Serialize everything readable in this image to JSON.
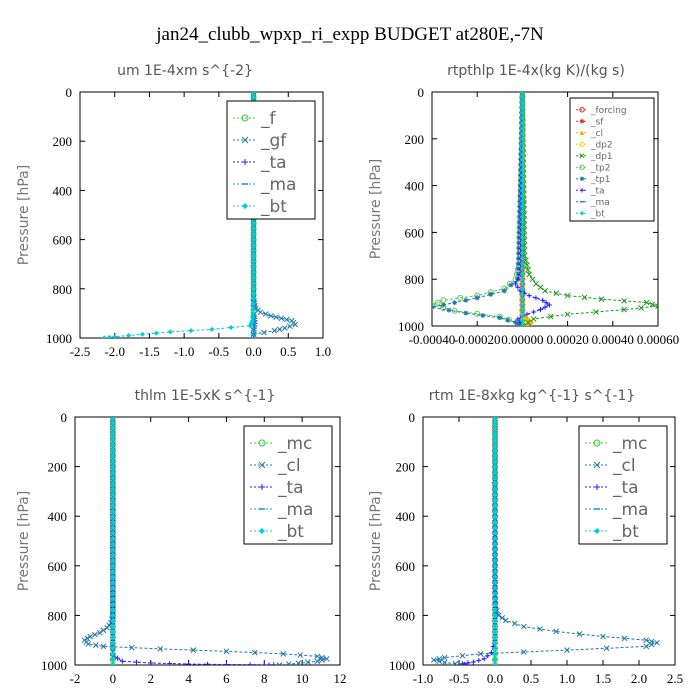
{
  "figure": {
    "title": "jan24_clubb_wpxp_ri_expp  BUDGET at280E,-7N"
  },
  "chart_data": [
    {
      "type": "line",
      "title": "um   1E-4xm s^{-2}",
      "ylabel": "Pressure [hPa]",
      "xlim": [
        -2.5,
        1.0
      ],
      "ylim": [
        1000,
        0
      ],
      "xticks": [
        "-2.5",
        "-2.0",
        "-1.5",
        "-1.0",
        "-0.5",
        "0.0",
        "0.5",
        "1.0"
      ],
      "yticks": [
        "0",
        "200",
        "400",
        "600",
        "800",
        "1000"
      ],
      "legend": {
        "position": "top-right",
        "size": "large"
      },
      "series": [
        {
          "name": "_f",
          "color": "#33cc33",
          "marker": "o",
          "x": [
            0,
            0
          ],
          "y": [
            0,
            1000
          ]
        },
        {
          "name": "_gf",
          "color": "#2277aa",
          "marker": "x",
          "x": [
            0,
            0,
            0,
            0.01,
            0.03,
            0.1,
            0.25,
            0.4,
            0.55,
            0.6,
            0.45,
            0.3,
            0.0
          ],
          "y": [
            0,
            800,
            840,
            860,
            880,
            895,
            910,
            920,
            930,
            945,
            960,
            970,
            985
          ]
        },
        {
          "name": "_ta",
          "color": "#2222ff",
          "marker": "+",
          "x": [
            0,
            0,
            0,
            0,
            0,
            0.02,
            0.02,
            0.01,
            0,
            0
          ],
          "y": [
            0,
            800,
            850,
            870,
            900,
            920,
            940,
            960,
            980,
            1000
          ]
        },
        {
          "name": "_ma",
          "color": "#1199cc",
          "marker": "-",
          "x": [
            0,
            0,
            0,
            0,
            0,
            0,
            0,
            0,
            0,
            0
          ],
          "y": [
            0,
            800,
            850,
            870,
            900,
            920,
            940,
            960,
            980,
            1000
          ]
        },
        {
          "name": "_bt",
          "color": "#00ccdd",
          "marker": "D",
          "x": [
            0,
            0,
            0,
            -0.01,
            -0.02,
            -0.05,
            -0.6,
            -1.2,
            -1.6,
            -2.0,
            -2.15
          ],
          "y": [
            0,
            800,
            860,
            900,
            930,
            950,
            965,
            975,
            985,
            995,
            1000
          ]
        }
      ]
    },
    {
      "type": "line",
      "title": "rtpthlp   1E-4x(kg K)/(kg s)",
      "ylabel": "Pressure [hPa]",
      "xlim": [
        -0.0004,
        0.0006
      ],
      "ylim": [
        1000,
        0
      ],
      "xticks": [
        "-0.00040",
        "-0.00020",
        "0.00000",
        "0.00020",
        "0.00040",
        "0.00060"
      ],
      "yticks": [
        "0",
        "200",
        "400",
        "600",
        "800",
        "1000"
      ],
      "legend": {
        "position": "top-right",
        "size": "small"
      },
      "series": [
        {
          "name": "_forcing",
          "color": "#ee2222",
          "marker": "o",
          "x": [
            0,
            0
          ],
          "y": [
            0,
            1000
          ]
        },
        {
          "name": "_sf",
          "color": "#ee2222",
          "marker": "*",
          "x": [
            0,
            0
          ],
          "y": [
            0,
            1000
          ]
        },
        {
          "name": "_cl",
          "color": "#ffaa00",
          "marker": "^",
          "x": [
            0,
            0,
            2e-05,
            4e-05,
            2e-05,
            0
          ],
          "y": [
            0,
            950,
            965,
            980,
            990,
            1000
          ]
        },
        {
          "name": "_dp2",
          "color": "#dddd00",
          "marker": "o",
          "x": [
            0,
            0,
            1e-05,
            0
          ],
          "y": [
            0,
            960,
            980,
            1000
          ]
        },
        {
          "name": "_dp1",
          "color": "#229922",
          "marker": "x",
          "x": [
            0,
            1e-05,
            3e-05,
            6e-05,
            0.0001,
            0.0002,
            0.00035,
            0.00055,
            0.0006,
            0.00045,
            0.0002,
            5e-05,
            0
          ],
          "y": [
            0,
            700,
            780,
            820,
            850,
            870,
            885,
            900,
            915,
            930,
            950,
            970,
            1000
          ]
        },
        {
          "name": "_tp2",
          "color": "#55cc55",
          "marker": "o",
          "x": [
            0,
            -1e-05,
            -3e-05,
            -8e-05,
            -0.0002,
            -0.00035,
            -0.0004,
            -0.0003,
            -0.0001,
            -2e-05,
            0
          ],
          "y": [
            0,
            720,
            800,
            840,
            870,
            890,
            910,
            935,
            960,
            985,
            1000
          ]
        },
        {
          "name": "_tp1",
          "color": "#2277aa",
          "marker": "*",
          "x": [
            0,
            -2e-05,
            -8e-05,
            -0.0002,
            -0.0003,
            -0.0004,
            -0.00025,
            -0.0001,
            -3e-05,
            0
          ],
          "y": [
            0,
            800,
            850,
            880,
            900,
            920,
            945,
            965,
            985,
            1000
          ]
        },
        {
          "name": "_ta",
          "color": "#2222ff",
          "marker": "+",
          "x": [
            0,
            -1e-05,
            -3e-05,
            -1e-05,
            3e-05,
            9e-05,
            0.00012,
            8e-05,
            2e-05,
            -2e-05,
            0
          ],
          "y": [
            0,
            780,
            820,
            850,
            870,
            890,
            910,
            930,
            950,
            970,
            1000
          ]
        },
        {
          "name": "_ma",
          "color": "#1199cc",
          "marker": "-",
          "x": [
            0,
            0
          ],
          "y": [
            0,
            1000
          ]
        },
        {
          "name": "_bt",
          "color": "#00ccdd",
          "marker": "D",
          "x": [
            0,
            0
          ],
          "y": [
            0,
            1000
          ]
        }
      ]
    },
    {
      "type": "line",
      "title": "thlm   1E-5xK s^{-1}",
      "ylabel": "Pressure [hPa]",
      "xlim": [
        -2,
        12
      ],
      "ylim": [
        1000,
        0
      ],
      "xticks": [
        "-2",
        "0",
        "2",
        "4",
        "6",
        "8",
        "10",
        "12"
      ],
      "yticks": [
        "0",
        "200",
        "400",
        "600",
        "800",
        "1000"
      ],
      "legend": {
        "position": "top-right",
        "size": "large"
      },
      "series": [
        {
          "name": "_mc",
          "color": "#33cc33",
          "marker": "o",
          "x": [
            0,
            0
          ],
          "y": [
            0,
            1000
          ]
        },
        {
          "name": "_cl",
          "color": "#2277aa",
          "marker": "x",
          "x": [
            0,
            0,
            -0.1,
            -0.3,
            -0.7,
            -1.2,
            -1.5,
            -1.3,
            -0.5,
            2.5,
            6,
            9,
            10.8,
            11.3,
            10.8,
            9.8,
            8.8
          ],
          "y": [
            0,
            800,
            830,
            850,
            870,
            885,
            900,
            915,
            925,
            935,
            945,
            955,
            965,
            975,
            985,
            993,
            1000
          ]
        },
        {
          "name": "_ta",
          "color": "#2222ff",
          "marker": "+",
          "x": [
            0,
            0,
            0,
            0.5,
            2,
            4,
            6,
            8.5,
            8
          ],
          "y": [
            0,
            900,
            960,
            985,
            992,
            996,
            998,
            999,
            1000
          ]
        },
        {
          "name": "_ma",
          "color": "#1199cc",
          "marker": "-",
          "x": [
            0,
            0
          ],
          "y": [
            0,
            1000
          ]
        },
        {
          "name": "_bt",
          "color": "#00ccdd",
          "marker": "D",
          "x": [
            0,
            0
          ],
          "y": [
            0,
            1000
          ]
        }
      ]
    },
    {
      "type": "line",
      "title": "rtm   1E-8xkg kg^{-1} s^{-1}",
      "ylabel": "Pressure [hPa]",
      "xlim": [
        -1.0,
        2.5
      ],
      "ylim": [
        1000,
        0
      ],
      "xticks": [
        "-1.0",
        "-0.5",
        "0.0",
        "0.5",
        "1.0",
        "1.5",
        "2.0",
        "2.5"
      ],
      "yticks": [
        "0",
        "200",
        "400",
        "600",
        "800",
        "1000"
      ],
      "legend": {
        "position": "top-right",
        "size": "large"
      },
      "series": [
        {
          "name": "_mc",
          "color": "#33cc33",
          "marker": "o",
          "x": [
            0,
            0
          ],
          "y": [
            0,
            1000
          ]
        },
        {
          "name": "_cl",
          "color": "#2277aa",
          "marker": "x",
          "x": [
            0,
            0,
            0.01,
            0.05,
            0.15,
            0.4,
            0.85,
            1.5,
            2.1,
            2.25,
            2.1,
            1.0,
            -0.2,
            -0.7,
            -0.85,
            -0.7,
            -0.4
          ],
          "y": [
            0,
            700,
            760,
            800,
            820,
            845,
            865,
            885,
            900,
            910,
            925,
            940,
            955,
            970,
            980,
            990,
            1000
          ]
        },
        {
          "name": "_ta",
          "color": "#2222ff",
          "marker": "+",
          "x": [
            0,
            0,
            -0.05,
            -0.15,
            -0.3,
            -0.45,
            -0.4
          ],
          "y": [
            0,
            900,
            950,
            975,
            988,
            995,
            1000
          ]
        },
        {
          "name": "_ma",
          "color": "#1199cc",
          "marker": "-",
          "x": [
            0,
            0
          ],
          "y": [
            0,
            1000
          ]
        },
        {
          "name": "_bt",
          "color": "#00ccdd",
          "marker": "D",
          "x": [
            0,
            0
          ],
          "y": [
            0,
            1000
          ]
        }
      ]
    }
  ]
}
